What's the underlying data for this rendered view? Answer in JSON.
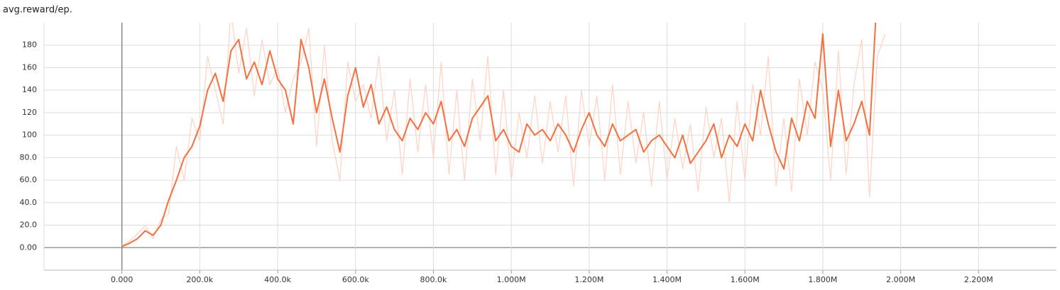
{
  "chart_data": {
    "type": "line",
    "title": "avg.reward/ep.",
    "x": [
      0,
      20000,
      40000,
      60000,
      80000,
      100000,
      120000,
      140000,
      160000,
      180000,
      200000,
      220000,
      240000,
      260000,
      280000,
      300000,
      320000,
      340000,
      360000,
      380000,
      400000,
      420000,
      440000,
      460000,
      480000,
      500000,
      520000,
      540000,
      560000,
      580000,
      600000,
      620000,
      640000,
      660000,
      680000,
      700000,
      720000,
      740000,
      760000,
      780000,
      800000,
      820000,
      840000,
      860000,
      880000,
      900000,
      920000,
      940000,
      960000,
      980000,
      1000000,
      1020000,
      1040000,
      1060000,
      1080000,
      1100000,
      1120000,
      1140000,
      1160000,
      1180000,
      1200000,
      1220000,
      1240000,
      1260000,
      1280000,
      1300000,
      1320000,
      1340000,
      1360000,
      1380000,
      1400000,
      1420000,
      1440000,
      1460000,
      1480000,
      1500000,
      1520000,
      1540000,
      1560000,
      1580000,
      1600000,
      1620000,
      1640000,
      1660000,
      1680000,
      1700000,
      1720000,
      1740000,
      1760000,
      1780000,
      1800000,
      1820000,
      1840000,
      1860000,
      1880000,
      1900000,
      1920000,
      1940000,
      1960000
    ],
    "series": [
      {
        "color": "#ffd3c4",
        "values": [
          2,
          6,
          12,
          20,
          8,
          25,
          30,
          90,
          60,
          115,
          95,
          170,
          140,
          110,
          210,
          155,
          195,
          135,
          185,
          145,
          160,
          120,
          150,
          165,
          195,
          90,
          180,
          95,
          60,
          165,
          130,
          145,
          115,
          170,
          95,
          140,
          65,
          150,
          85,
          145,
          80,
          165,
          65,
          140,
          60,
          150,
          95,
          170,
          65,
          140,
          60,
          120,
          80,
          135,
          75,
          130,
          85,
          135,
          55,
          140,
          90,
          135,
          60,
          145,
          65,
          130,
          75,
          120,
          55,
          130,
          60,
          115,
          70,
          110,
          50,
          125,
          80,
          115,
          40,
          130,
          60,
          145,
          100,
          170,
          55,
          115,
          50,
          150,
          100,
          165,
          140,
          60,
          175,
          65,
          145,
          185,
          45,
          170,
          190
        ]
      },
      {
        "color": "#f4703f",
        "values": [
          1,
          4,
          8,
          15,
          11,
          20,
          42,
          60,
          80,
          90,
          108,
          140,
          155,
          130,
          175,
          185,
          150,
          165,
          145,
          175,
          150,
          140,
          110,
          185,
          160,
          120,
          150,
          115,
          85,
          135,
          160,
          125,
          145,
          110,
          125,
          105,
          95,
          115,
          105,
          120,
          110,
          130,
          95,
          105,
          90,
          115,
          125,
          135,
          95,
          105,
          90,
          85,
          110,
          100,
          105,
          95,
          110,
          100,
          85,
          105,
          120,
          100,
          90,
          110,
          95,
          100,
          105,
          85,
          95,
          100,
          90,
          80,
          100,
          75,
          85,
          95,
          110,
          80,
          100,
          90,
          110,
          95,
          140,
          110,
          85,
          70,
          115,
          95,
          130,
          115,
          190,
          90,
          140,
          95,
          110,
          130,
          100,
          230,
          null
        ]
      }
    ],
    "xlim": [
      -200000,
      2400000
    ],
    "ylim": [
      -20,
      200
    ],
    "xticks": [
      {
        "value": 0,
        "label": "0.000"
      },
      {
        "value": 200000,
        "label": "200.0k"
      },
      {
        "value": 400000,
        "label": "400.0k"
      },
      {
        "value": 600000,
        "label": "600.0k"
      },
      {
        "value": 800000,
        "label": "800.0k"
      },
      {
        "value": 1000000,
        "label": "1.000M"
      },
      {
        "value": 1200000,
        "label": "1.200M"
      },
      {
        "value": 1400000,
        "label": "1.400M"
      },
      {
        "value": 1600000,
        "label": "1.600M"
      },
      {
        "value": 1800000,
        "label": "1.800M"
      },
      {
        "value": 2000000,
        "label": "2.000M"
      },
      {
        "value": 2200000,
        "label": "2.200M"
      }
    ],
    "yticks": [
      {
        "value": 0,
        "label": "0.00"
      },
      {
        "value": 20,
        "label": "20.0"
      },
      {
        "value": 40,
        "label": "40.0"
      },
      {
        "value": 60,
        "label": "60.0"
      },
      {
        "value": 80,
        "label": "80.0"
      },
      100,
      120,
      140,
      160,
      180
    ],
    "grid": true
  }
}
